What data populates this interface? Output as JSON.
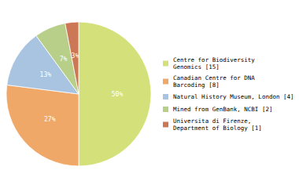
{
  "chart_data": {
    "type": "pie",
    "categories": [
      "Centre for Biodiversity\nGenomics [15]",
      "Canadian Centre for DNA\nBarcoding [8]",
      "Natural History Museum, London [4]",
      "Mined from GenBank, NCBI [2]",
      "Universita di Firenze,\nDepartment of Biology [1]"
    ],
    "values": [
      50,
      27,
      13,
      7,
      3
    ],
    "value_labels": [
      "50%",
      "27%",
      "13%",
      "7%",
      "3%"
    ],
    "colors": [
      "#d4e17a",
      "#f0a868",
      "#a8c4e0",
      "#b8cf8a",
      "#cc7755"
    ],
    "data_labels": true,
    "legend": "right"
  }
}
